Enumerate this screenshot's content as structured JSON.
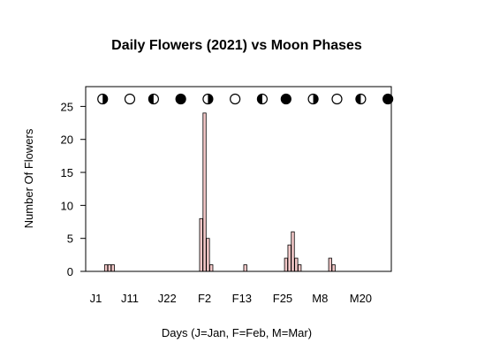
{
  "chart_data": {
    "type": "bar",
    "title": "Daily Flowers (2021) vs Moon Phases",
    "xlabel": "Days (J=Jan, F=Feb, M=Mar)",
    "ylabel": "Number Of Flowers",
    "xlim": [
      -3,
      87
    ],
    "ylim": [
      0,
      28
    ],
    "y_ticks": [
      0,
      5,
      10,
      15,
      20,
      25
    ],
    "x_ticks": [
      {
        "day": 0,
        "label": "J1"
      },
      {
        "day": 10,
        "label": "J11"
      },
      {
        "day": 21,
        "label": "J22"
      },
      {
        "day": 32,
        "label": "F2"
      },
      {
        "day": 43,
        "label": "F13"
      },
      {
        "day": 55,
        "label": "F25"
      },
      {
        "day": 66,
        "label": "M8"
      },
      {
        "day": 78,
        "label": "M20"
      }
    ],
    "bar_color": "#f4c8c8",
    "series": [
      {
        "x": [
          3,
          4,
          5,
          31,
          32,
          33,
          34,
          44,
          56,
          57,
          58,
          59,
          60,
          69,
          70
        ],
        "values": [
          1,
          1,
          1,
          8,
          24,
          5,
          1,
          1,
          2,
          4,
          6,
          2,
          1,
          2,
          1
        ]
      }
    ],
    "moon_phases": [
      {
        "day": 2,
        "phase": "first-quarter"
      },
      {
        "day": 10,
        "phase": "full"
      },
      {
        "day": 17,
        "phase": "last-quarter"
      },
      {
        "day": 25,
        "phase": "new"
      },
      {
        "day": 33,
        "phase": "first-quarter"
      },
      {
        "day": 41,
        "phase": "full"
      },
      {
        "day": 49,
        "phase": "last-quarter"
      },
      {
        "day": 56,
        "phase": "new"
      },
      {
        "day": 64,
        "phase": "first-quarter"
      },
      {
        "day": 71,
        "phase": "full"
      },
      {
        "day": 78,
        "phase": "last-quarter"
      },
      {
        "day": 86,
        "phase": "new"
      }
    ]
  }
}
